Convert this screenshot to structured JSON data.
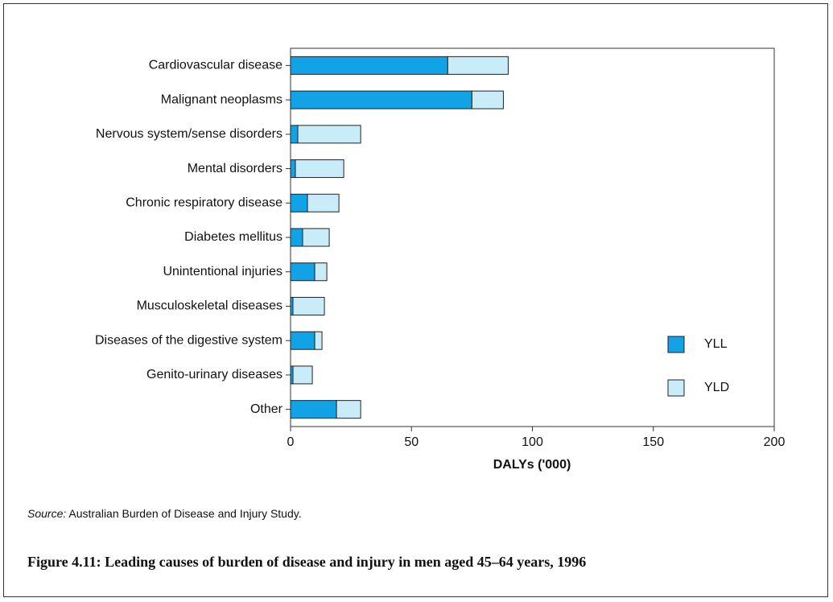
{
  "chart_data": {
    "type": "stacked-barh",
    "categories": [
      "Cardiovascular disease",
      "Malignant neoplasms",
      "Nervous system/sense disorders",
      "Mental disorders",
      "Chronic respiratory disease",
      "Diabetes mellitus",
      "Unintentional injuries",
      "Musculoskeletal diseases",
      "Diseases of the digestive system",
      "Genito-urinary diseases",
      "Other"
    ],
    "series": [
      {
        "name": "YLL",
        "color": "#12a2e6",
        "values": [
          65,
          75,
          3,
          2,
          7,
          5,
          10,
          1,
          10,
          1,
          19
        ]
      },
      {
        "name": "YLD",
        "color": "#c9ecf9",
        "values": [
          25,
          13,
          26,
          20,
          13,
          11,
          5,
          13,
          3,
          8,
          10
        ]
      }
    ],
    "xlim": [
      0,
      200
    ],
    "xticks": [
      0,
      50,
      100,
      150,
      200
    ],
    "x_label": "DALYs ('000)",
    "legend": "lower right",
    "source_label": "Source:",
    "source_text": " Australian Burden of Disease and Injury Study.",
    "caption": "Figure 4.11: Leading causes of burden of disease and injury in men aged 45–64 years, 1996"
  }
}
